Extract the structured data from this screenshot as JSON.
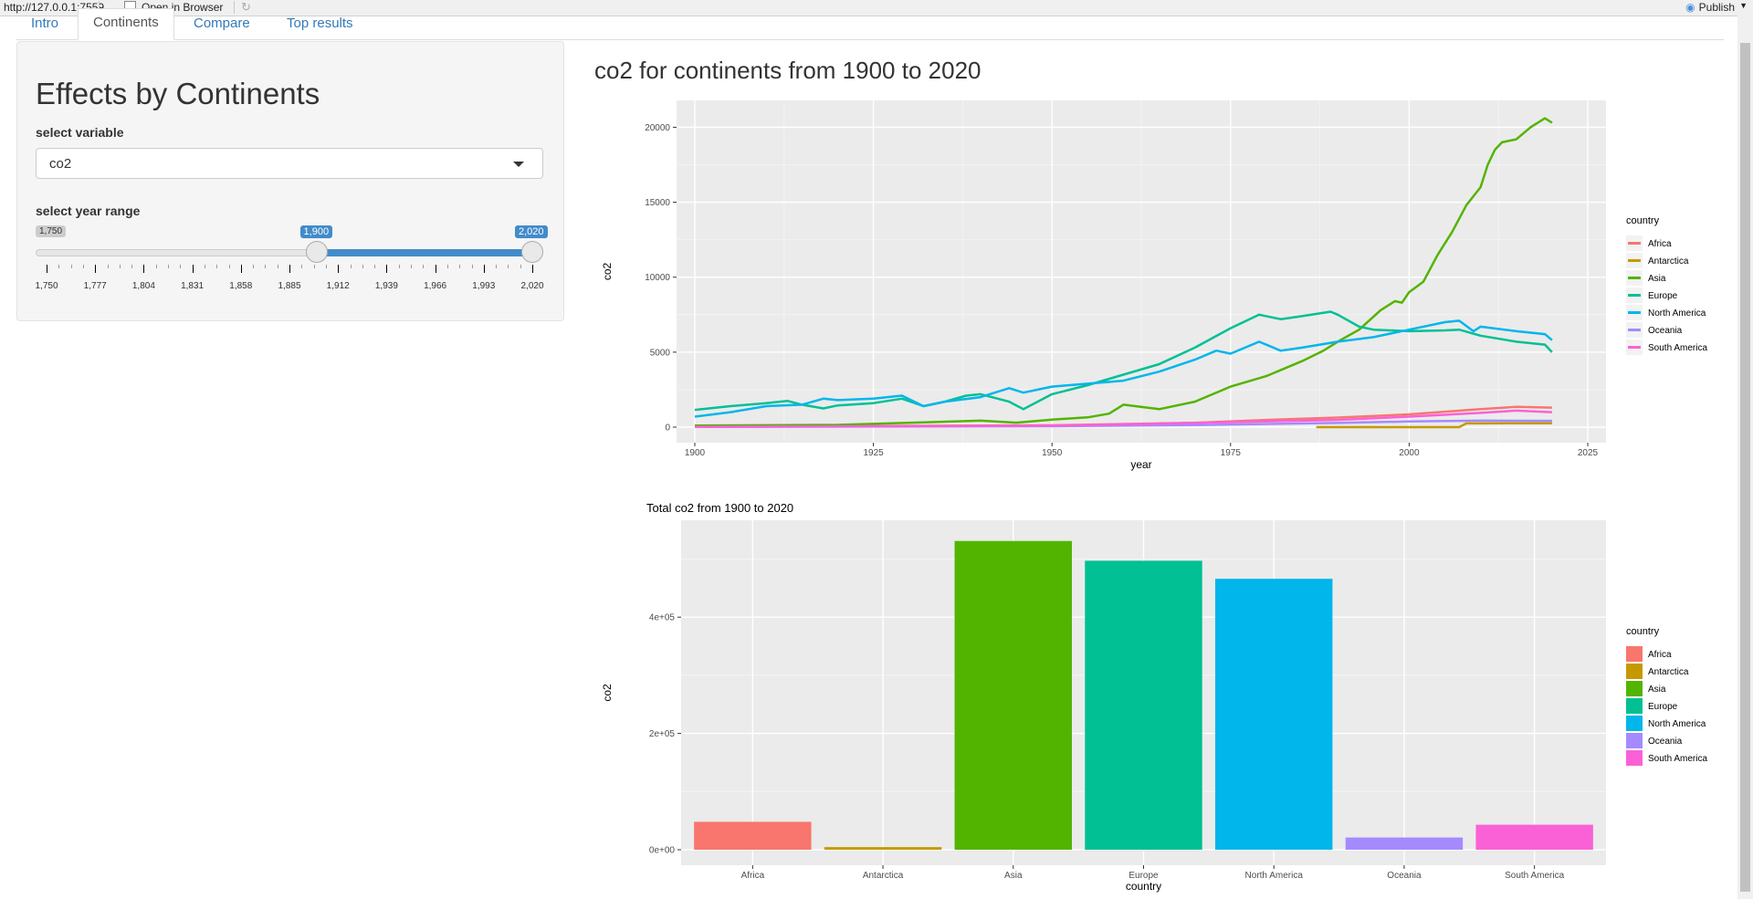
{
  "browser": {
    "url": "http://127.0.0.1:7559",
    "open_label": "Open in Browser",
    "publish_label": "Publish"
  },
  "tabs": [
    {
      "label": "Intro"
    },
    {
      "label": "Continents"
    },
    {
      "label": "Compare"
    },
    {
      "label": "Top results"
    }
  ],
  "sidebar": {
    "title": "Effects by Continents",
    "variable_label": "select variable",
    "variable_value": "co2",
    "year_label": "select year range",
    "slider": {
      "min": 1750,
      "max": 2020,
      "from": 1900,
      "to": 2020,
      "min_label": "1,750",
      "from_label": "1,900",
      "to_label": "2,020",
      "ticks": [
        "1,750",
        "1,777",
        "1,804",
        "1,831",
        "1,858",
        "1,885",
        "1,912",
        "1,939",
        "1,966",
        "1,993",
        "2,020"
      ]
    }
  },
  "main_title": "co2 for continents from 1900 to 2020",
  "colors": {
    "Africa": "#F8766D",
    "Antarctica": "#C49A00",
    "Asia": "#53B400",
    "Europe": "#00C094",
    "North America": "#00B6EB",
    "Oceania": "#A58AFF",
    "South America": "#FB61D7"
  },
  "chart_data": [
    {
      "type": "line",
      "xlabel": "year",
      "ylabel": "co2",
      "xlim": [
        1900,
        2025
      ],
      "ylim": [
        0,
        21000
      ],
      "x_ticks": [
        1900,
        1925,
        1950,
        1975,
        2000,
        2025
      ],
      "y_ticks": [
        0,
        5000,
        10000,
        15000,
        20000
      ],
      "legend_title": "country",
      "legend_position": "right",
      "series": [
        {
          "name": "Africa",
          "points": [
            [
              1900,
              30
            ],
            [
              1950,
              120
            ],
            [
              1970,
              290
            ],
            [
              1980,
              480
            ],
            [
              1990,
              640
            ],
            [
              2000,
              850
            ],
            [
              2010,
              1200
            ],
            [
              2015,
              1350
            ],
            [
              2020,
              1300
            ]
          ]
        },
        {
          "name": "Antarctica",
          "points": [
            [
              1987,
              0
            ],
            [
              2007,
              0
            ],
            [
              2008,
              250
            ],
            [
              2020,
              260
            ]
          ]
        },
        {
          "name": "Asia",
          "points": [
            [
              1900,
              110
            ],
            [
              1920,
              150
            ],
            [
              1940,
              430
            ],
            [
              1945,
              300
            ],
            [
              1950,
              500
            ],
            [
              1955,
              650
            ],
            [
              1958,
              900
            ],
            [
              1960,
              1500
            ],
            [
              1965,
              1200
            ],
            [
              1970,
              1700
            ],
            [
              1975,
              2700
            ],
            [
              1980,
              3400
            ],
            [
              1985,
              4400
            ],
            [
              1988,
              5100
            ],
            [
              1990,
              5700
            ],
            [
              1993,
              6500
            ],
            [
              1996,
              7800
            ],
            [
              1998,
              8400
            ],
            [
              1999,
              8300
            ],
            [
              2000,
              9000
            ],
            [
              2002,
              9700
            ],
            [
              2004,
              11500
            ],
            [
              2006,
              13000
            ],
            [
              2008,
              14800
            ],
            [
              2010,
              16000
            ],
            [
              2011,
              17500
            ],
            [
              2012,
              18500
            ],
            [
              2013,
              19000
            ],
            [
              2015,
              19200
            ],
            [
              2017,
              20000
            ],
            [
              2019,
              20600
            ],
            [
              2020,
              20300
            ]
          ]
        },
        {
          "name": "Europe",
          "points": [
            [
              1900,
              1150
            ],
            [
              1905,
              1400
            ],
            [
              1910,
              1600
            ],
            [
              1913,
              1750
            ],
            [
              1915,
              1500
            ],
            [
              1918,
              1250
            ],
            [
              1920,
              1450
            ],
            [
              1925,
              1600
            ],
            [
              1929,
              1900
            ],
            [
              1932,
              1400
            ],
            [
              1935,
              1700
            ],
            [
              1938,
              2100
            ],
            [
              1940,
              2200
            ],
            [
              1944,
              1700
            ],
            [
              1946,
              1200
            ],
            [
              1950,
              2200
            ],
            [
              1955,
              2800
            ],
            [
              1960,
              3500
            ],
            [
              1965,
              4200
            ],
            [
              1970,
              5300
            ],
            [
              1975,
              6600
            ],
            [
              1979,
              7500
            ],
            [
              1982,
              7200
            ],
            [
              1985,
              7400
            ],
            [
              1989,
              7700
            ],
            [
              1990,
              7500
            ],
            [
              1993,
              6700
            ],
            [
              1995,
              6500
            ],
            [
              2000,
              6400
            ],
            [
              2005,
              6450
            ],
            [
              2007,
              6500
            ],
            [
              2010,
              6100
            ],
            [
              2015,
              5700
            ],
            [
              2019,
              5500
            ],
            [
              2020,
              5000
            ]
          ]
        },
        {
          "name": "North America",
          "points": [
            [
              1900,
              700
            ],
            [
              1905,
              1000
            ],
            [
              1910,
              1400
            ],
            [
              1915,
              1500
            ],
            [
              1918,
              1900
            ],
            [
              1920,
              1800
            ],
            [
              1925,
              1900
            ],
            [
              1929,
              2100
            ],
            [
              1932,
              1400
            ],
            [
              1935,
              1700
            ],
            [
              1940,
              2000
            ],
            [
              1944,
              2600
            ],
            [
              1946,
              2300
            ],
            [
              1950,
              2700
            ],
            [
              1955,
              2900
            ],
            [
              1960,
              3100
            ],
            [
              1965,
              3700
            ],
            [
              1970,
              4500
            ],
            [
              1973,
              5100
            ],
            [
              1975,
              4900
            ],
            [
              1979,
              5700
            ],
            [
              1982,
              5100
            ],
            [
              1985,
              5300
            ],
            [
              1990,
              5700
            ],
            [
              1995,
              6000
            ],
            [
              2000,
              6500
            ],
            [
              2005,
              7000
            ],
            [
              2007,
              7100
            ],
            [
              2009,
              6400
            ],
            [
              2010,
              6700
            ],
            [
              2015,
              6400
            ],
            [
              2019,
              6200
            ],
            [
              2020,
              5800
            ]
          ]
        },
        {
          "name": "Oceania",
          "points": [
            [
              1900,
              10
            ],
            [
              1950,
              60
            ],
            [
              1970,
              140
            ],
            [
              1990,
              280
            ],
            [
              2000,
              380
            ],
            [
              2010,
              430
            ],
            [
              2020,
              420
            ]
          ]
        },
        {
          "name": "South America",
          "points": [
            [
              1900,
              20
            ],
            [
              1950,
              100
            ],
            [
              1970,
              280
            ],
            [
              1990,
              480
            ],
            [
              2000,
              700
            ],
            [
              2010,
              950
            ],
            [
              2015,
              1100
            ],
            [
              2020,
              1000
            ]
          ]
        }
      ]
    },
    {
      "type": "bar",
      "title": "Total  co2  from  1900  to  2020",
      "xlabel": "country",
      "ylabel": "co2",
      "ylim": [
        0,
        540000
      ],
      "y_ticks": [
        0,
        200000,
        400000
      ],
      "y_tick_labels": [
        "0e+00",
        "2e+05",
        "4e+05"
      ],
      "categories": [
        "Africa",
        "Antarctica",
        "Asia",
        "Europe",
        "North America",
        "Oceania",
        "South America"
      ],
      "values": [
        48000,
        4500,
        531000,
        497000,
        466000,
        21000,
        43000
      ],
      "legend_title": "country",
      "legend_position": "right"
    }
  ]
}
